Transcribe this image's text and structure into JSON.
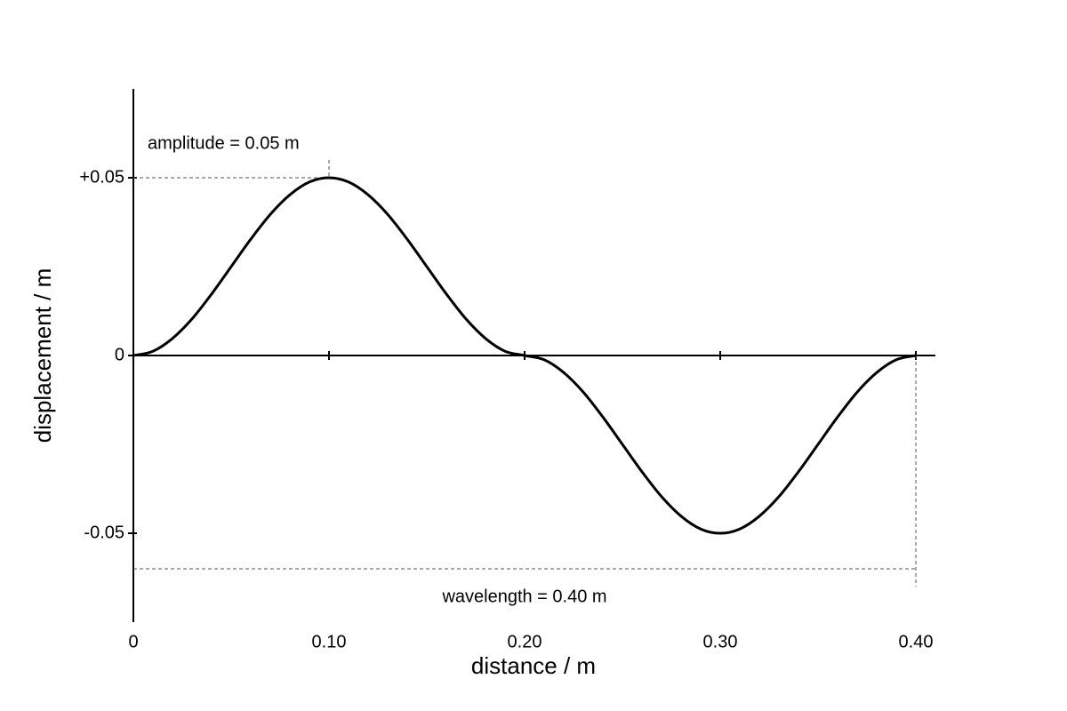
{
  "chart_data": {
    "type": "line",
    "x_label": "distance / m",
    "y_label": "displacement / m",
    "annotations": [
      "amplitude = 0.05 m",
      "wavelength = 0.40 m"
    ],
    "x": [
      0,
      0.01,
      0.02,
      0.03,
      0.04,
      0.05,
      0.06,
      0.07,
      0.08,
      0.09,
      0.1,
      0.11,
      0.12,
      0.13,
      0.14,
      0.15,
      0.16,
      0.17,
      0.18,
      0.19,
      0.2,
      0.21,
      0.22,
      0.23,
      0.24,
      0.25,
      0.26,
      0.27,
      0.28,
      0.29,
      0.3,
      0.31,
      0.32,
      0.33,
      0.34,
      0.35,
      0.36,
      0.37,
      0.38,
      0.39,
      0.4
    ],
    "values": [
      0,
      0.0012,
      0.0048,
      0.0103,
      0.0173,
      0.025,
      0.0327,
      0.0397,
      0.0452,
      0.0488,
      0.05,
      0.0488,
      0.0452,
      0.0397,
      0.0327,
      0.025,
      0.0173,
      0.0103,
      0.0048,
      0.0012,
      0,
      -0.0012,
      -0.0048,
      -0.0103,
      -0.0173,
      -0.025,
      -0.0327,
      -0.0397,
      -0.0452,
      -0.0488,
      -0.05,
      -0.0488,
      -0.0452,
      -0.0397,
      -0.0327,
      -0.025,
      -0.0173,
      -0.0103,
      -0.0048,
      -0.0012,
      0
    ],
    "color": "#000000",
    "xlim": [
      0,
      0.41
    ],
    "ylim": [
      -0.075,
      0.075
    ],
    "xticks": [
      0,
      {
        "value": 0.1,
        "label": "0.10"
      },
      {
        "value": 0.2,
        "label": "0.20"
      },
      {
        "value": 0.3,
        "label": "0.30"
      },
      {
        "value": 0.4,
        "label": "0.40"
      }
    ],
    "yticks": [
      -0.05,
      0,
      {
        "value": 0.05,
        "label": "+0.05"
      }
    ],
    "grid": false
  }
}
